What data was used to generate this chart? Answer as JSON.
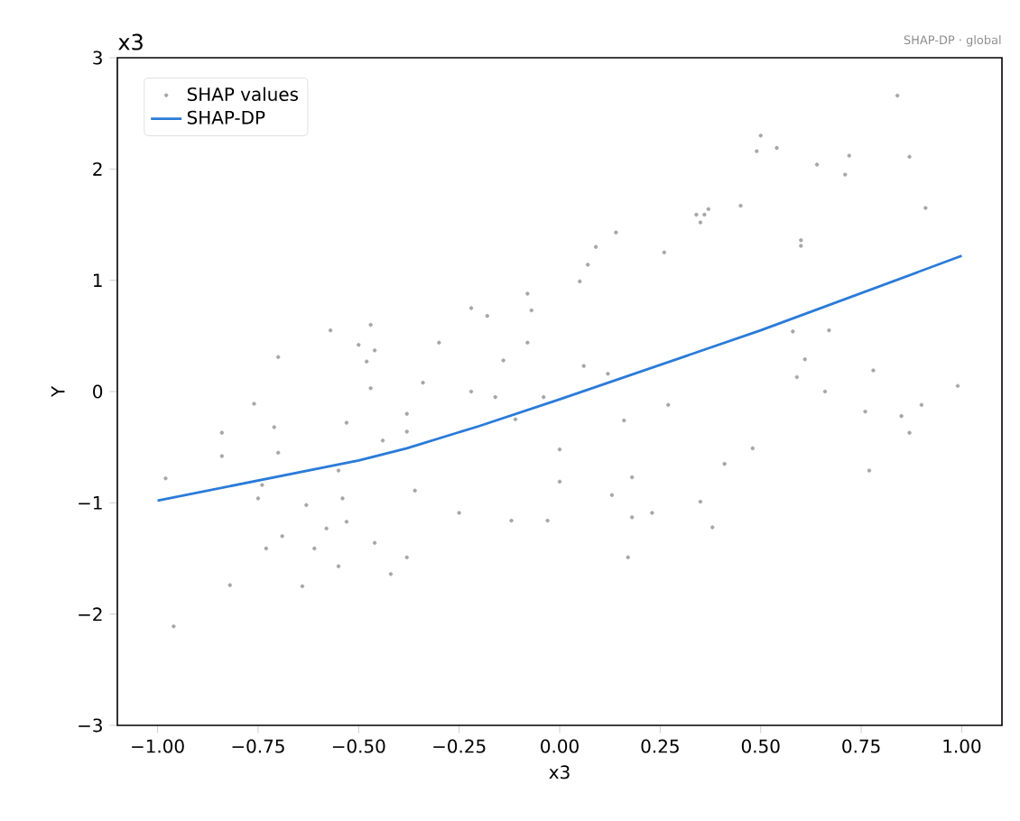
{
  "chart_data": {
    "type": "scatter",
    "title": "x3",
    "subtitle": "SHAP-DP · global",
    "xlabel": "x3",
    "ylabel": "Y",
    "xlim": [
      -1.1,
      1.1
    ],
    "ylim": [
      -3,
      3
    ],
    "xticks": [
      {
        "value": -1,
        "label": "−1.00"
      },
      {
        "value": -0.75,
        "label": "−0.75"
      },
      {
        "value": -0.5,
        "label": "−0.50"
      },
      {
        "value": -0.25,
        "label": "−0.25"
      },
      {
        "value": 0,
        "label": "0.00"
      },
      {
        "value": 0.25,
        "label": "0.25"
      },
      {
        "value": 0.5,
        "label": "0.50"
      },
      {
        "value": 0.75,
        "label": "0.75"
      },
      {
        "value": 1,
        "label": "1.00"
      }
    ],
    "yticks": [
      {
        "value": -3,
        "label": "−3"
      },
      {
        "value": -2,
        "label": "−2"
      },
      {
        "value": -1,
        "label": "−1"
      },
      0,
      1,
      2,
      3
    ],
    "legend": "top left",
    "grid": false,
    "series": [
      {
        "name": "SHAP values",
        "marker": "circle",
        "color": "#a6a6a6",
        "x": [
          -0.98,
          -0.96,
          -0.84,
          -0.84,
          -0.82,
          -0.76,
          -0.71,
          -0.7,
          -0.74,
          -0.75,
          -0.73,
          -0.69,
          -0.64,
          -0.63,
          -0.61,
          -0.58,
          -0.55,
          -0.55,
          -0.54,
          -0.53,
          -0.53,
          -0.47,
          -0.48,
          -0.46,
          -0.44,
          -0.42,
          -0.38,
          -0.38,
          -0.38,
          -0.36,
          -0.34,
          -0.25,
          -0.22,
          -0.16,
          -0.12,
          -0.11,
          -0.14,
          -0.04,
          -0.03,
          0.0,
          0.0,
          -0.7,
          -0.57,
          -0.47,
          -0.5,
          -0.46,
          -0.3,
          -0.22,
          -0.18,
          -0.08,
          -0.07,
          -0.08,
          0.84,
          0.5,
          0.49,
          0.54,
          0.64,
          0.72,
          0.71,
          0.87,
          0.91,
          0.45,
          0.34,
          0.36,
          0.37,
          0.35,
          0.26,
          0.14,
          0.09,
          0.07,
          0.05,
          0.6,
          0.6,
          0.58,
          0.67,
          0.61,
          0.59,
          0.66,
          0.78,
          0.99,
          0.06,
          0.12,
          0.27,
          0.9,
          0.16,
          0.13,
          0.18,
          0.18,
          0.17,
          0.23,
          0.35,
          0.38,
          0.41,
          0.48,
          0.76,
          0.77,
          0.85,
          0.87
        ],
        "values": [
          -0.78,
          -2.11,
          -0.37,
          -0.58,
          -1.74,
          -0.11,
          -0.32,
          -0.55,
          -0.84,
          -0.96,
          -1.41,
          -1.3,
          -1.75,
          -1.02,
          -1.41,
          -1.23,
          -1.57,
          -0.71,
          -0.96,
          -1.17,
          -0.28,
          0.03,
          0.27,
          -1.36,
          -0.44,
          -1.64,
          -0.2,
          -0.36,
          -1.49,
          -0.89,
          0.08,
          -1.09,
          0.0,
          -0.05,
          -1.16,
          -0.25,
          0.28,
          -0.05,
          -1.16,
          -0.52,
          -0.81,
          0.31,
          0.55,
          0.6,
          0.42,
          0.37,
          0.44,
          0.75,
          0.68,
          0.88,
          0.73,
          0.44,
          2.66,
          2.3,
          2.16,
          2.19,
          2.04,
          2.12,
          1.95,
          2.11,
          1.65,
          1.67,
          1.59,
          1.59,
          1.64,
          1.52,
          1.25,
          1.43,
          1.3,
          1.14,
          0.99,
          1.36,
          1.31,
          0.54,
          0.55,
          0.29,
          0.13,
          0.0,
          0.19,
          0.05,
          0.23,
          0.16,
          -0.12,
          -0.12,
          -0.26,
          -0.93,
          -0.77,
          -1.13,
          -1.49,
          -1.09,
          -0.99,
          -1.22,
          -0.65,
          -0.51,
          -0.18,
          -0.71,
          -0.22,
          -0.37
        ]
      },
      {
        "name": "SHAP-DP",
        "type": "line",
        "marker": "none",
        "color": "#2a7bd8",
        "x": [
          -1.0,
          -0.5,
          -0.38,
          -0.2,
          0.0,
          0.5,
          1.0
        ],
        "values": [
          -0.98,
          -0.62,
          -0.51,
          -0.31,
          -0.07,
          0.55,
          1.22
        ]
      }
    ]
  }
}
